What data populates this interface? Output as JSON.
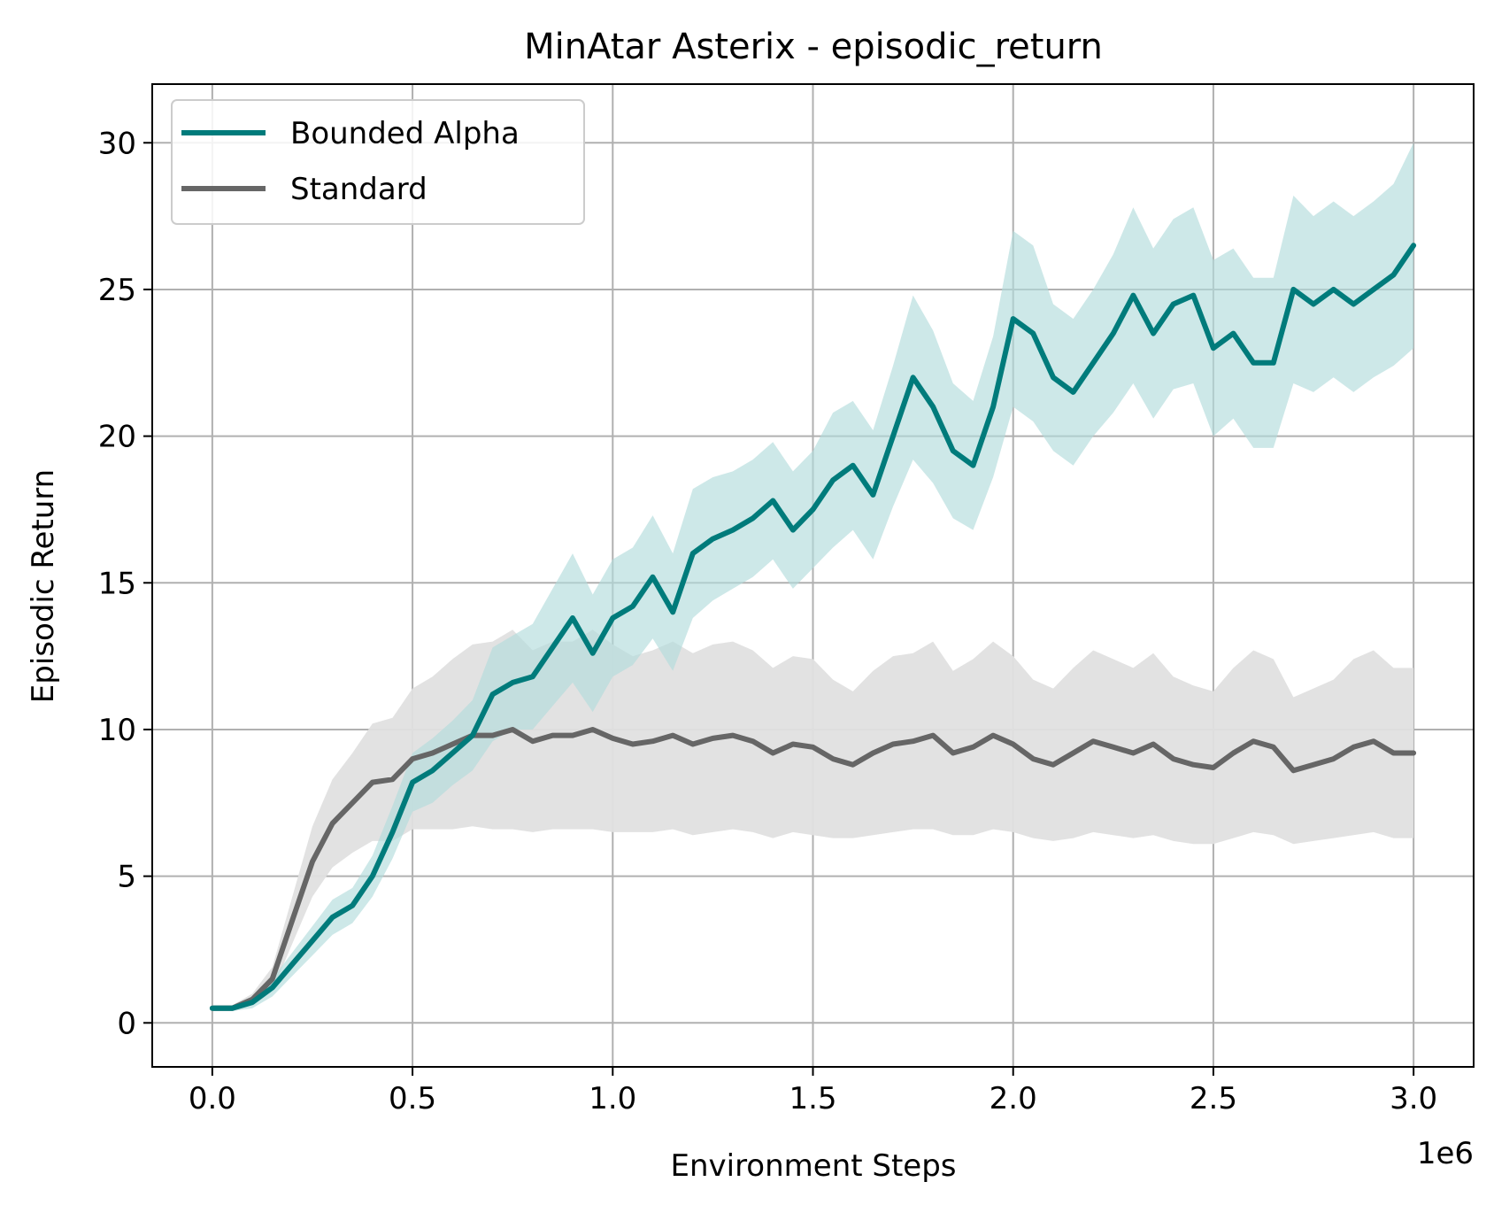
{
  "chart_data": {
    "type": "line",
    "title": "MinAtar Asterix - episodic_return",
    "xlabel": "Environment Steps",
    "ylabel": "Episodic Return",
    "x_offset_label": "1e6",
    "xlim": [
      -0.15,
      3.15
    ],
    "ylim": [
      -1.5,
      32
    ],
    "x_ticks": [
      0.0,
      0.5,
      1.0,
      1.5,
      2.0,
      2.5,
      3.0
    ],
    "x_tick_labels": [
      "0.0",
      "0.5",
      "1.0",
      "1.5",
      "2.0",
      "2.5",
      "3.0"
    ],
    "y_ticks": [
      0,
      5,
      10,
      15,
      20,
      25,
      30
    ],
    "y_tick_labels": [
      "0",
      "5",
      "10",
      "15",
      "20",
      "25",
      "30"
    ],
    "grid": true,
    "legend_position": "top-left",
    "x_units_note": "x values in millions of steps (axis multiplier 1e6)",
    "x": [
      0.0,
      0.05,
      0.1,
      0.15,
      0.2,
      0.25,
      0.3,
      0.35,
      0.4,
      0.45,
      0.5,
      0.55,
      0.6,
      0.65,
      0.7,
      0.75,
      0.8,
      0.85,
      0.9,
      0.95,
      1.0,
      1.05,
      1.1,
      1.15,
      1.2,
      1.25,
      1.3,
      1.35,
      1.4,
      1.45,
      1.5,
      1.55,
      1.6,
      1.65,
      1.7,
      1.75,
      1.8,
      1.85,
      1.9,
      1.95,
      2.0,
      2.05,
      2.1,
      2.15,
      2.2,
      2.25,
      2.3,
      2.35,
      2.4,
      2.45,
      2.5,
      2.55,
      2.6,
      2.65,
      2.7,
      2.75,
      2.8,
      2.85,
      2.9,
      2.95,
      3.0
    ],
    "series": [
      {
        "name": "Bounded Alpha",
        "color": "#007b7b",
        "band_color": "#b2dcdc",
        "values": [
          0.5,
          0.5,
          0.7,
          1.2,
          2.0,
          2.8,
          3.6,
          4.0,
          5.0,
          6.5,
          8.2,
          8.6,
          9.2,
          9.8,
          11.2,
          11.6,
          11.8,
          12.8,
          13.8,
          12.6,
          13.8,
          14.2,
          15.2,
          14.0,
          16.0,
          16.5,
          16.8,
          17.2,
          17.8,
          16.8,
          17.5,
          18.5,
          19.0,
          18.0,
          20.0,
          22.0,
          21.0,
          19.5,
          19.0,
          21.0,
          24.0,
          23.5,
          22.0,
          21.5,
          22.5,
          23.5,
          24.8,
          23.5,
          24.5,
          24.8,
          23.0,
          23.5,
          22.5,
          22.5,
          25.0,
          24.5,
          25.0,
          24.5,
          25.0,
          25.5,
          26.5
        ],
        "lower": [
          0.4,
          0.4,
          0.5,
          0.9,
          1.6,
          2.3,
          3.0,
          3.4,
          4.3,
          5.6,
          7.2,
          7.5,
          8.1,
          8.6,
          9.6,
          10.0,
          10.0,
          10.8,
          11.6,
          10.6,
          11.8,
          12.2,
          13.1,
          12.0,
          13.8,
          14.4,
          14.8,
          15.2,
          15.8,
          14.8,
          15.5,
          16.2,
          16.8,
          15.8,
          17.6,
          19.2,
          18.4,
          17.2,
          16.8,
          18.6,
          21.0,
          20.5,
          19.5,
          19.0,
          20.0,
          20.8,
          21.8,
          20.6,
          21.6,
          21.8,
          20.0,
          20.6,
          19.6,
          19.6,
          21.8,
          21.5,
          22.0,
          21.5,
          22.0,
          22.4,
          23.0
        ],
        "upper": [
          0.6,
          0.6,
          0.9,
          1.5,
          2.4,
          3.3,
          4.2,
          4.6,
          5.7,
          7.4,
          9.2,
          9.7,
          10.3,
          11.0,
          12.8,
          13.2,
          13.6,
          14.8,
          16.0,
          14.6,
          15.8,
          16.2,
          17.3,
          16.0,
          18.2,
          18.6,
          18.8,
          19.2,
          19.8,
          18.8,
          19.5,
          20.8,
          21.2,
          20.2,
          22.4,
          24.8,
          23.6,
          21.8,
          21.2,
          23.4,
          27.0,
          26.5,
          24.5,
          24.0,
          25.0,
          26.2,
          27.8,
          26.4,
          27.4,
          27.8,
          26.0,
          26.4,
          25.4,
          25.4,
          28.2,
          27.5,
          28.0,
          27.5,
          28.0,
          28.6,
          30.0
        ]
      },
      {
        "name": "Standard",
        "color": "#666666",
        "band_color": "#e0e0e0",
        "values": [
          0.5,
          0.5,
          0.8,
          1.5,
          3.5,
          5.5,
          6.8,
          7.5,
          8.2,
          8.3,
          9.0,
          9.2,
          9.5,
          9.8,
          9.8,
          10.0,
          9.6,
          9.8,
          9.8,
          10.0,
          9.7,
          9.5,
          9.6,
          9.8,
          9.5,
          9.7,
          9.8,
          9.6,
          9.2,
          9.5,
          9.4,
          9.0,
          8.8,
          9.2,
          9.5,
          9.6,
          9.8,
          9.2,
          9.4,
          9.8,
          9.5,
          9.0,
          8.8,
          9.2,
          9.6,
          9.4,
          9.2,
          9.5,
          9.0,
          8.8,
          8.7,
          9.2,
          9.6,
          9.4,
          8.6,
          8.8,
          9.0,
          9.4,
          9.6,
          9.2,
          9.2
        ],
        "lower": [
          0.4,
          0.4,
          0.6,
          1.1,
          2.7,
          4.3,
          5.3,
          5.8,
          6.2,
          6.2,
          6.6,
          6.6,
          6.6,
          6.7,
          6.6,
          6.6,
          6.5,
          6.6,
          6.6,
          6.6,
          6.5,
          6.5,
          6.5,
          6.6,
          6.4,
          6.5,
          6.6,
          6.5,
          6.3,
          6.5,
          6.4,
          6.3,
          6.3,
          6.4,
          6.5,
          6.6,
          6.6,
          6.4,
          6.4,
          6.6,
          6.5,
          6.3,
          6.2,
          6.3,
          6.5,
          6.4,
          6.3,
          6.4,
          6.2,
          6.1,
          6.1,
          6.3,
          6.5,
          6.4,
          6.1,
          6.2,
          6.3,
          6.4,
          6.5,
          6.3,
          6.3
        ],
        "upper": [
          0.6,
          0.6,
          1.0,
          1.9,
          4.3,
          6.7,
          8.3,
          9.2,
          10.2,
          10.4,
          11.4,
          11.8,
          12.4,
          12.9,
          13.0,
          13.4,
          12.7,
          13.0,
          13.0,
          13.4,
          12.9,
          12.5,
          12.7,
          13.0,
          12.6,
          12.9,
          13.0,
          12.7,
          12.1,
          12.5,
          12.4,
          11.7,
          11.3,
          12.0,
          12.5,
          12.6,
          13.0,
          12.0,
          12.4,
          13.0,
          12.5,
          11.7,
          11.4,
          12.1,
          12.7,
          12.4,
          12.1,
          12.6,
          11.8,
          11.5,
          11.3,
          12.1,
          12.7,
          12.4,
          11.1,
          11.4,
          11.7,
          12.4,
          12.7,
          12.1,
          12.1
        ]
      }
    ]
  }
}
